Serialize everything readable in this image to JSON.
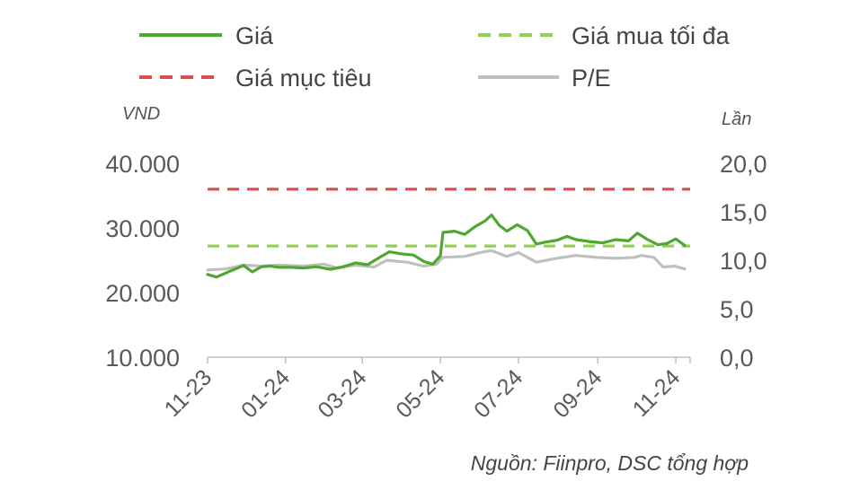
{
  "chart_data": {
    "type": "line",
    "xlabel": "",
    "ylabel_left": "VND",
    "ylabel_right": "Lần",
    "left_axis": {
      "ticks": [
        "10.000",
        "20.000",
        "30.000",
        "40.000"
      ],
      "ylim": [
        10000,
        40000
      ]
    },
    "right_axis": {
      "ticks": [
        "0,0",
        "5,0",
        "10,0",
        "15,0",
        "20,0"
      ],
      "ylim": [
        0,
        20
      ]
    },
    "x_ticks": [
      "11-23",
      "01-24",
      "03-24",
      "05-24",
      "07-24",
      "09-24",
      "11-24"
    ],
    "x_tick_dates": [
      "2023-11-01",
      "2024-01-01",
      "2024-03-01",
      "2024-05-01",
      "2024-07-01",
      "2024-09-01",
      "2024-11-01"
    ],
    "x_range": [
      "2023-11-01",
      "2024-11-08"
    ],
    "legend": {
      "placement": "top"
    },
    "source": "Nguồn: Fiinpro, DSC tổng hợp",
    "series": [
      {
        "name": "Giá",
        "axis": "left",
        "color": "#4EA72E",
        "style": "solid",
        "points": [
          [
            "2023-11-01",
            22800
          ],
          [
            "2023-11-08",
            22400
          ],
          [
            "2023-11-15",
            23000
          ],
          [
            "2023-11-22",
            23600
          ],
          [
            "2023-11-29",
            24200
          ],
          [
            "2023-12-06",
            23200
          ],
          [
            "2023-12-13",
            24000
          ],
          [
            "2023-12-20",
            24100
          ],
          [
            "2023-12-27",
            23900
          ],
          [
            "2024-01-05",
            23900
          ],
          [
            "2024-01-15",
            23800
          ],
          [
            "2024-01-25",
            24000
          ],
          [
            "2024-02-05",
            23600
          ],
          [
            "2024-02-15",
            24000
          ],
          [
            "2024-02-25",
            24600
          ],
          [
            "2024-03-05",
            24300
          ],
          [
            "2024-03-15",
            25500
          ],
          [
            "2024-03-22",
            26300
          ],
          [
            "2024-03-31",
            26000
          ],
          [
            "2024-04-10",
            25800
          ],
          [
            "2024-04-18",
            24800
          ],
          [
            "2024-04-25",
            24400
          ],
          [
            "2024-05-01",
            25700
          ],
          [
            "2024-05-03",
            29300
          ],
          [
            "2024-05-12",
            29500
          ],
          [
            "2024-05-20",
            29000
          ],
          [
            "2024-05-28",
            30200
          ],
          [
            "2024-06-05",
            31100
          ],
          [
            "2024-06-10",
            32000
          ],
          [
            "2024-06-16",
            30400
          ],
          [
            "2024-06-22",
            29500
          ],
          [
            "2024-06-30",
            30500
          ],
          [
            "2024-07-08",
            29600
          ],
          [
            "2024-07-15",
            27500
          ],
          [
            "2024-07-22",
            27800
          ],
          [
            "2024-07-31",
            28100
          ],
          [
            "2024-08-08",
            28700
          ],
          [
            "2024-08-15",
            28200
          ],
          [
            "2024-08-25",
            27900
          ],
          [
            "2024-09-05",
            27700
          ],
          [
            "2024-09-15",
            28200
          ],
          [
            "2024-09-25",
            28000
          ],
          [
            "2024-10-02",
            29200
          ],
          [
            "2024-10-10",
            28200
          ],
          [
            "2024-10-18",
            27400
          ],
          [
            "2024-10-25",
            27600
          ],
          [
            "2024-11-01",
            28300
          ],
          [
            "2024-11-08",
            27300
          ]
        ]
      },
      {
        "name": "Giá mua tối đa",
        "axis": "left",
        "color": "#92D050",
        "style": "dashed",
        "value": 27200
      },
      {
        "name": "Giá mục tiêu",
        "axis": "left",
        "color": "#E04B4B",
        "style": "dashed",
        "value": 36000
      },
      {
        "name": "P/E",
        "axis": "right",
        "color": "#BFBFBF",
        "style": "solid",
        "points": [
          [
            "2023-11-01",
            9.0
          ],
          [
            "2023-11-15",
            9.1
          ],
          [
            "2023-11-29",
            9.5
          ],
          [
            "2023-12-13",
            9.4
          ],
          [
            "2023-12-27",
            9.5
          ],
          [
            "2024-01-15",
            9.4
          ],
          [
            "2024-01-31",
            9.6
          ],
          [
            "2024-02-10",
            9.2
          ],
          [
            "2024-02-25",
            9.5
          ],
          [
            "2024-03-10",
            9.3
          ],
          [
            "2024-03-20",
            10.0
          ],
          [
            "2024-04-05",
            9.8
          ],
          [
            "2024-04-18",
            9.4
          ],
          [
            "2024-04-28",
            9.6
          ],
          [
            "2024-05-03",
            10.3
          ],
          [
            "2024-05-20",
            10.4
          ],
          [
            "2024-06-01",
            10.8
          ],
          [
            "2024-06-10",
            11.0
          ],
          [
            "2024-06-22",
            10.4
          ],
          [
            "2024-07-01",
            10.8
          ],
          [
            "2024-07-15",
            9.8
          ],
          [
            "2024-07-31",
            10.2
          ],
          [
            "2024-08-15",
            10.5
          ],
          [
            "2024-08-31",
            10.3
          ],
          [
            "2024-09-15",
            10.2
          ],
          [
            "2024-09-30",
            10.3
          ],
          [
            "2024-10-05",
            10.5
          ],
          [
            "2024-10-15",
            10.3
          ],
          [
            "2024-10-22",
            9.3
          ],
          [
            "2024-10-31",
            9.4
          ],
          [
            "2024-11-08",
            9.1
          ]
        ]
      }
    ]
  }
}
